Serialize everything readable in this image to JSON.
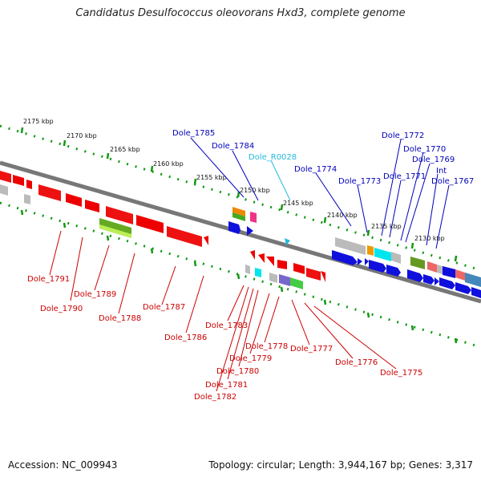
{
  "title": "Candidatus Desulfococcus oleovorans Hxd3, complete genome",
  "footer": {
    "accession": "Accession: NC_009943",
    "summary": "Topology: circular; Length: 3,944,167 bp; Genes: 3,317"
  },
  "colors": {
    "forward_gene": "#1010dd",
    "reverse_gene": "#ee0000",
    "backbone": "#777777",
    "ticks": "#119911",
    "rna_label": "#22bbdd"
  },
  "scale_labels": [
    "2175 kbp",
    "2170 kbp",
    "2165 kbp",
    "2160 kbp",
    "2155 kbp",
    "2150 kbp",
    "2145 kbp",
    "2140 kbp",
    "2135 kbp",
    "2130 kbp"
  ],
  "reverse_labels": [
    "Dole_1791",
    "Dole_1790",
    "Dole_1789",
    "Dole_1788",
    "Dole_1787",
    "Dole_1786",
    "Dole_1783",
    "Dole_1782",
    "Dole_1781",
    "Dole_1780",
    "Dole_1779",
    "Dole_1778",
    "Dole_1777",
    "Dole_1776",
    "Dole_1775"
  ],
  "forward_labels": [
    "Dole_1785",
    "Dole_1784",
    "Dole_1774",
    "Dole_1773",
    "Dole_1772",
    "Dole_1771",
    "Dole_1770",
    "Dole_1769",
    "Int",
    "Dole_1767"
  ],
  "rna_labels": [
    "Dole_R0028"
  ]
}
